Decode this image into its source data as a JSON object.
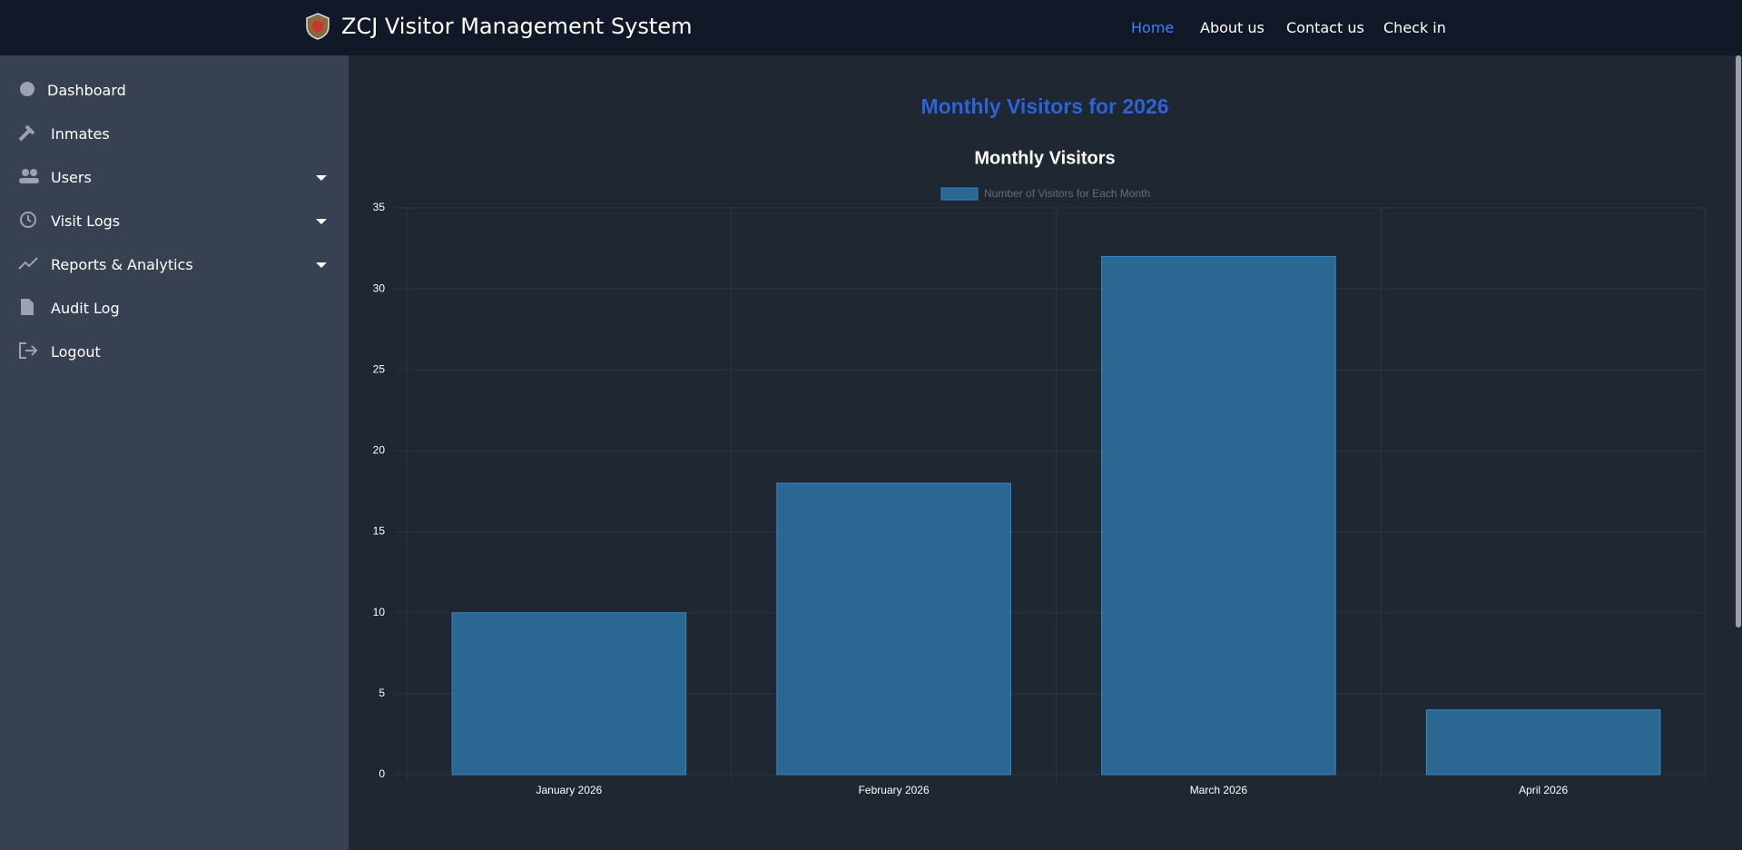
{
  "header": {
    "title": "ZCJ Visitor Management System",
    "nav": [
      "Home",
      "About us",
      "Contact us",
      "Check in"
    ]
  },
  "sidebar": {
    "items": [
      "Dashboard",
      "Inmates",
      "Users",
      "Visit Logs",
      "Reports & Analytics",
      "Audit Log",
      "Logout"
    ]
  },
  "page_title": "Monthly Visitors for 2026",
  "chart_data": {
    "type": "bar",
    "title": "Monthly Visitors",
    "categories": [
      "January 2026",
      "February 2026",
      "March 2026",
      "April 2026"
    ],
    "series": [
      {
        "name": "Number of Visitors for Each Month",
        "color": "#2b6793",
        "values": [
          10,
          18,
          32,
          4
        ]
      }
    ],
    "ylim": [
      0,
      35
    ],
    "yticks": [
      0,
      5,
      10,
      15,
      20,
      25,
      30,
      35
    ],
    "grid": true
  }
}
